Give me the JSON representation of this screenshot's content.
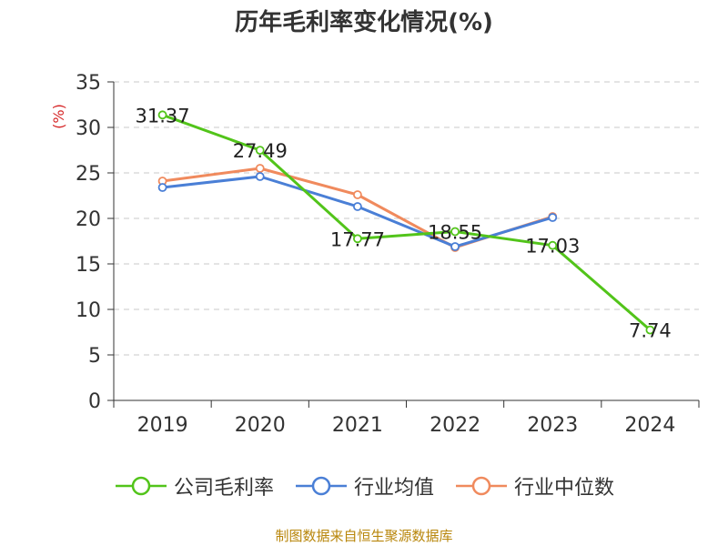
{
  "chart_data": {
    "type": "line",
    "title": "历年毛利率变化情况(%)",
    "ylabel": "(%)",
    "xlabel": "",
    "categories": [
      "2019",
      "2020",
      "2021",
      "2022",
      "2023",
      "2024"
    ],
    "ylim": [
      0,
      35
    ],
    "yticks": [
      0,
      5,
      10,
      15,
      20,
      25,
      30,
      35
    ],
    "grid": true,
    "legend_position": "bottom",
    "series": [
      {
        "name": "公司毛利率",
        "color": "#52c41a",
        "values": [
          31.37,
          27.49,
          17.77,
          18.55,
          17.03,
          7.74
        ],
        "labels": [
          "31.37",
          "27.49",
          "17.77",
          "18.55",
          "17.03",
          "7.74"
        ]
      },
      {
        "name": "行业均值",
        "color": "#4a7fd6",
        "values": [
          23.4,
          24.6,
          21.3,
          16.9,
          20.1,
          null
        ],
        "labels": []
      },
      {
        "name": "行业中位数",
        "color": "#f08a5d",
        "values": [
          24.1,
          25.5,
          22.6,
          16.8,
          20.2,
          null
        ],
        "labels": []
      }
    ],
    "source": "制图数据来自恒生聚源数据库"
  }
}
